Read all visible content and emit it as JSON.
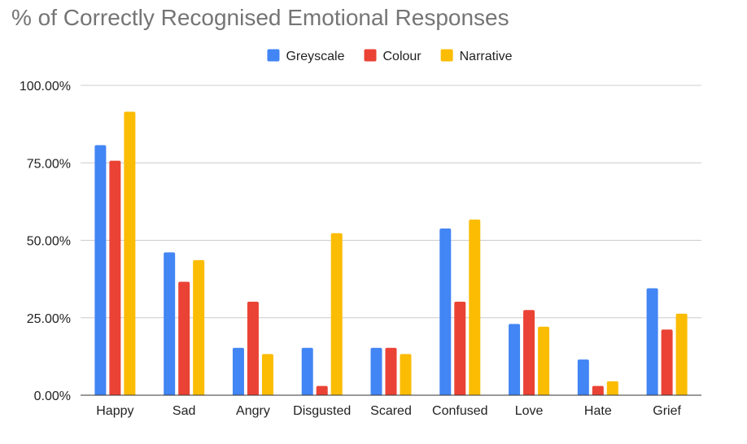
{
  "chart_data": {
    "type": "bar",
    "title": "% of Correctly Recognised Emotional Responses",
    "xlabel": "",
    "ylabel": "",
    "ylim": [
      0,
      1
    ],
    "yticks": [
      0,
      0.25,
      0.5,
      0.75,
      1
    ],
    "ytick_labels": [
      "0.00%",
      "25.00%",
      "50.00%",
      "75.00%",
      "100.00%"
    ],
    "grid": true,
    "legend_position": "top-center",
    "categories": [
      "Happy",
      "Sad",
      "Angry",
      "Disgusted",
      "Scared",
      "Confused",
      "Love",
      "Hate",
      "Grief"
    ],
    "series": [
      {
        "name": "Greyscale",
        "color": "#4285F4",
        "values": [
          0.807,
          0.461,
          0.153,
          0.153,
          0.153,
          0.538,
          0.23,
          0.115,
          0.345
        ]
      },
      {
        "name": "Colour",
        "color": "#EA4335",
        "values": [
          0.757,
          0.366,
          0.302,
          0.03,
          0.153,
          0.302,
          0.275,
          0.03,
          0.212
        ]
      },
      {
        "name": "Narrative",
        "color": "#FBBC04",
        "values": [
          0.915,
          0.436,
          0.133,
          0.523,
          0.133,
          0.567,
          0.221,
          0.045,
          0.263
        ]
      }
    ]
  }
}
